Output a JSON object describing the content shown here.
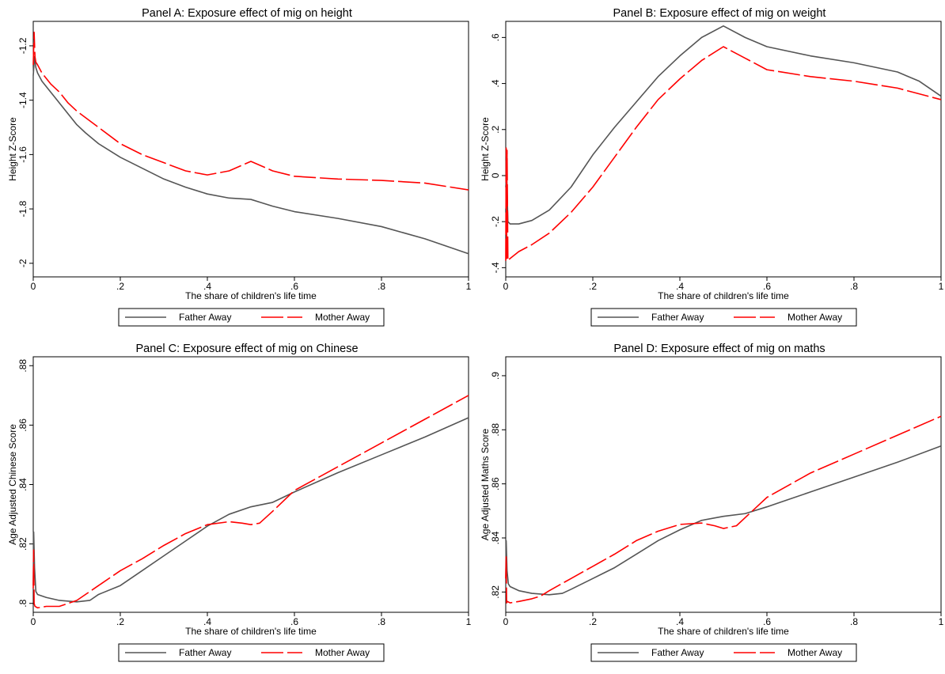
{
  "chart_data": [
    {
      "type": "line",
      "title": "Panel A: Exposure effect of mig on height",
      "xlabel": "The share of children's life time",
      "ylabel": "Height Z-Score",
      "xlim": [
        0,
        1
      ],
      "ylim": [
        -2.05,
        -1.11
      ],
      "xticks": [
        0,
        0.2,
        0.4,
        0.6,
        0.8,
        1
      ],
      "xtick_labels": [
        "0",
        ".2",
        ".4",
        ".6",
        ".8",
        "1"
      ],
      "yticks": [
        -1.2,
        -1.4,
        -1.6,
        -1.8,
        -2
      ],
      "ytick_labels": [
        "-1.2",
        "-1.4",
        "-1.6",
        "-1.8",
        "-2"
      ],
      "legend_position": "bottom",
      "series": [
        {
          "name": "Father Away",
          "color": "#555555",
          "dash": "solid",
          "x": [
            0,
            0.003,
            0.006,
            0.01,
            0.02,
            0.04,
            0.06,
            0.08,
            0.1,
            0.12,
            0.15,
            0.2,
            0.25,
            0.3,
            0.35,
            0.4,
            0.45,
            0.5,
            0.55,
            0.6,
            0.7,
            0.8,
            0.9,
            1.0
          ],
          "y": [
            -1.31,
            -1.24,
            -1.28,
            -1.3,
            -1.33,
            -1.37,
            -1.41,
            -1.45,
            -1.49,
            -1.52,
            -1.56,
            -1.61,
            -1.65,
            -1.69,
            -1.72,
            -1.745,
            -1.76,
            -1.765,
            -1.79,
            -1.81,
            -1.835,
            -1.865,
            -1.91,
            -1.965
          ]
        },
        {
          "name": "Mother Away",
          "color": "#ff0000",
          "dash": "dashed",
          "x": [
            0,
            0.002,
            0.004,
            0.006,
            0.01,
            0.02,
            0.04,
            0.06,
            0.08,
            0.1,
            0.15,
            0.2,
            0.25,
            0.3,
            0.35,
            0.4,
            0.45,
            0.5,
            0.55,
            0.6,
            0.7,
            0.8,
            0.9,
            1.0
          ],
          "y": [
            -1.27,
            -1.15,
            -1.24,
            -1.26,
            -1.27,
            -1.3,
            -1.34,
            -1.37,
            -1.41,
            -1.44,
            -1.5,
            -1.56,
            -1.6,
            -1.63,
            -1.66,
            -1.675,
            -1.66,
            -1.625,
            -1.66,
            -1.68,
            -1.69,
            -1.695,
            -1.705,
            -1.73
          ]
        }
      ]
    },
    {
      "type": "line",
      "title": "Panel B: Exposure effect of mig on weight",
      "xlabel": "The share of children's life time",
      "ylabel": "Height Z-Score",
      "xlim": [
        0,
        1
      ],
      "ylim": [
        -0.44,
        0.67
      ],
      "xticks": [
        0,
        0.2,
        0.4,
        0.6,
        0.8,
        1
      ],
      "xtick_labels": [
        "0",
        ".2",
        ".4",
        ".6",
        ".8",
        "1"
      ],
      "yticks": [
        -0.4,
        -0.2,
        0,
        0.2,
        0.4,
        0.6
      ],
      "ytick_labels": [
        "-.4",
        "-.2",
        "0",
        ".2",
        ".4",
        ".6"
      ],
      "legend_position": "bottom",
      "series": [
        {
          "name": "Father Away",
          "color": "#555555",
          "dash": "solid",
          "x": [
            0,
            0.002,
            0.005,
            0.01,
            0.03,
            0.06,
            0.1,
            0.15,
            0.2,
            0.25,
            0.3,
            0.35,
            0.4,
            0.45,
            0.5,
            0.55,
            0.6,
            0.7,
            0.8,
            0.9,
            0.95,
            1.0
          ],
          "y": [
            -0.05,
            0.0,
            -0.2,
            -0.21,
            -0.21,
            -0.195,
            -0.15,
            -0.05,
            0.09,
            0.21,
            0.32,
            0.43,
            0.52,
            0.6,
            0.65,
            0.6,
            0.56,
            0.52,
            0.49,
            0.45,
            0.41,
            0.345
          ]
        },
        {
          "name": "Mother Away",
          "color": "#ff0000",
          "dash": "dashed",
          "x": [
            0,
            0.001,
            0.002,
            0.003,
            0.005,
            0.01,
            0.03,
            0.06,
            0.1,
            0.15,
            0.2,
            0.25,
            0.3,
            0.35,
            0.4,
            0.45,
            0.5,
            0.55,
            0.6,
            0.7,
            0.8,
            0.9,
            1.0
          ],
          "y": [
            -0.37,
            0.12,
            -0.36,
            0.11,
            -0.37,
            -0.36,
            -0.33,
            -0.3,
            -0.25,
            -0.16,
            -0.05,
            0.08,
            0.21,
            0.33,
            0.42,
            0.5,
            0.56,
            0.51,
            0.46,
            0.43,
            0.41,
            0.38,
            0.33
          ]
        }
      ]
    },
    {
      "type": "line",
      "title": "Panel C: Exposure effect of mig on Chinese",
      "xlabel": "The share of children's life time",
      "ylabel": "Age Adjusted Chinese Score",
      "xlim": [
        0,
        1
      ],
      "ylim": [
        0.797,
        0.883
      ],
      "xticks": [
        0,
        0.2,
        0.4,
        0.6,
        0.8,
        1
      ],
      "xtick_labels": [
        "0",
        ".2",
        ".4",
        ".6",
        ".8",
        "1"
      ],
      "yticks": [
        0.8,
        0.82,
        0.84,
        0.86,
        0.88
      ],
      "ytick_labels": [
        ".8",
        ".82",
        ".84",
        ".86",
        ".88"
      ],
      "legend_position": "bottom",
      "series": [
        {
          "name": "Father Away",
          "color": "#555555",
          "dash": "solid",
          "x": [
            0,
            0.001,
            0.003,
            0.006,
            0.01,
            0.03,
            0.06,
            0.1,
            0.13,
            0.15,
            0.2,
            0.25,
            0.3,
            0.35,
            0.4,
            0.45,
            0.5,
            0.55,
            0.6,
            0.7,
            0.8,
            0.9,
            1.0
          ],
          "y": [
            0.806,
            0.824,
            0.812,
            0.804,
            0.803,
            0.802,
            0.801,
            0.8005,
            0.801,
            0.803,
            0.806,
            0.811,
            0.816,
            0.821,
            0.826,
            0.83,
            0.8325,
            0.834,
            0.8375,
            0.844,
            0.85,
            0.856,
            0.8625
          ]
        },
        {
          "name": "Mother Away",
          "color": "#ff0000",
          "dash": "dashed",
          "x": [
            0,
            0.001,
            0.002,
            0.004,
            0.01,
            0.03,
            0.06,
            0.08,
            0.1,
            0.15,
            0.2,
            0.25,
            0.3,
            0.35,
            0.4,
            0.45,
            0.48,
            0.5,
            0.52,
            0.55,
            0.6,
            0.7,
            0.8,
            0.9,
            1.0
          ],
          "y": [
            0.805,
            0.818,
            0.8,
            0.799,
            0.7985,
            0.799,
            0.799,
            0.8,
            0.801,
            0.806,
            0.811,
            0.815,
            0.8195,
            0.8235,
            0.8265,
            0.8275,
            0.827,
            0.8265,
            0.827,
            0.831,
            0.838,
            0.846,
            0.854,
            0.862,
            0.87
          ]
        }
      ]
    },
    {
      "type": "line",
      "title": "Panel D: Exposure effect of mig on maths",
      "xlabel": "The share of children's life time",
      "ylabel": "Age Adjusted Maths Score",
      "xlim": [
        0,
        1
      ],
      "ylim": [
        0.8125,
        0.907
      ],
      "xticks": [
        0,
        0.2,
        0.4,
        0.6,
        0.8,
        1
      ],
      "xtick_labels": [
        "0",
        ".2",
        ".4",
        ".6",
        ".8",
        "1"
      ],
      "yticks": [
        0.82,
        0.84,
        0.86,
        0.88,
        0.9
      ],
      "ytick_labels": [
        ".82",
        ".84",
        ".86",
        ".88",
        ".9"
      ],
      "legend_position": "bottom",
      "series": [
        {
          "name": "Father Away",
          "color": "#555555",
          "dash": "solid",
          "x": [
            0,
            0.001,
            0.003,
            0.006,
            0.01,
            0.03,
            0.06,
            0.1,
            0.13,
            0.15,
            0.2,
            0.25,
            0.3,
            0.35,
            0.4,
            0.45,
            0.5,
            0.55,
            0.6,
            0.7,
            0.8,
            0.9,
            1.0
          ],
          "y": [
            0.825,
            0.839,
            0.828,
            0.823,
            0.822,
            0.8205,
            0.8195,
            0.819,
            0.8195,
            0.821,
            0.825,
            0.829,
            0.834,
            0.839,
            0.843,
            0.8465,
            0.848,
            0.849,
            0.8515,
            0.857,
            0.8625,
            0.868,
            0.874
          ]
        },
        {
          "name": "Mother Away",
          "color": "#ff0000",
          "dash": "dashed",
          "x": [
            0,
            0.001,
            0.002,
            0.004,
            0.01,
            0.03,
            0.06,
            0.08,
            0.1,
            0.15,
            0.2,
            0.25,
            0.3,
            0.35,
            0.4,
            0.45,
            0.48,
            0.5,
            0.53,
            0.56,
            0.6,
            0.7,
            0.8,
            0.9,
            1.0
          ],
          "y": [
            0.825,
            0.833,
            0.816,
            0.8165,
            0.816,
            0.8165,
            0.8175,
            0.8185,
            0.8205,
            0.825,
            0.8295,
            0.834,
            0.839,
            0.8425,
            0.845,
            0.8455,
            0.8445,
            0.8435,
            0.8445,
            0.849,
            0.855,
            0.864,
            0.871,
            0.878,
            0.885
          ]
        }
      ]
    }
  ]
}
